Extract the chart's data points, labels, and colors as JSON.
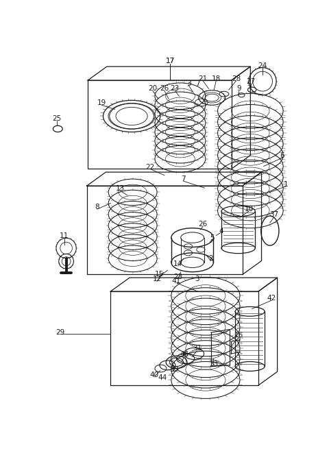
{
  "bg_color": "#ffffff",
  "line_color": "#1a1a1a",
  "fig_width": 4.8,
  "fig_height": 6.55,
  "dpi": 100,
  "label_fontsize": 7.5
}
